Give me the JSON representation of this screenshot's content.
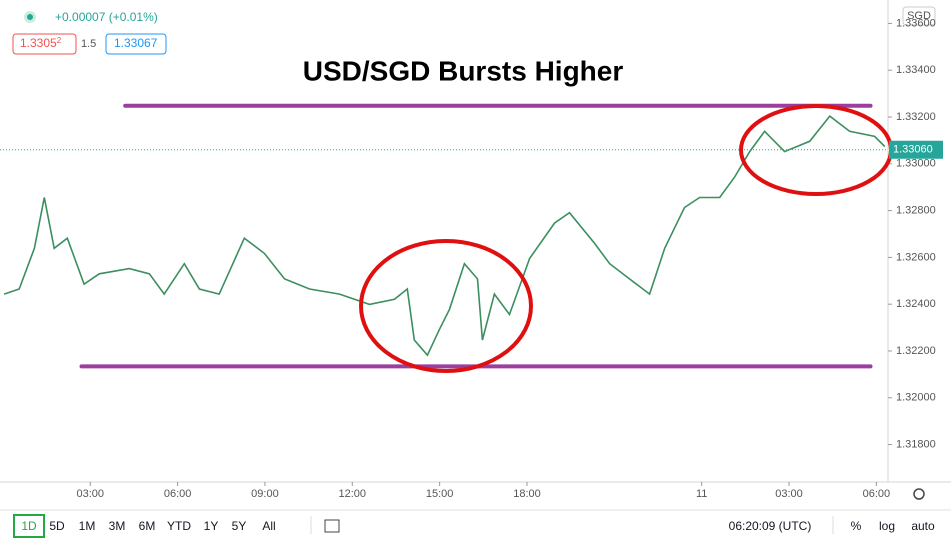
{
  "header": {
    "change": "+0.00007 (+0.01%)",
    "bid": {
      "main": "1.3305",
      "pip": "2"
    },
    "spread": "1.5",
    "ask": "1.33067",
    "currency": "SGD"
  },
  "chart_data": {
    "type": "line",
    "title": "USD/SGD Bursts Higher",
    "series": [
      {
        "color": "#3b8f5e",
        "x": [
          0.04,
          0.56,
          1.08,
          1.42,
          1.76,
          2.21,
          2.79,
          3.31,
          4.34,
          5.03,
          5.54,
          6.23,
          6.75,
          7.43,
          8.29,
          8.98,
          9.67,
          10.53,
          11.56,
          12.59,
          13.45,
          13.89,
          14.13,
          14.58,
          14.99,
          15.34,
          15.85,
          16.3,
          16.47,
          16.88,
          17.4,
          18.09,
          18.95,
          19.46,
          20.32,
          20.84,
          21.52,
          22.21,
          22.73,
          23.41,
          23.93,
          24.62,
          25.13,
          25.65,
          26.16,
          26.85,
          27.71,
          28.4,
          29.08,
          29.94,
          30.29
        ],
        "values": [
          1.32443,
          1.32465,
          1.32639,
          1.32856,
          1.32639,
          1.32682,
          1.32486,
          1.3253,
          1.32552,
          1.3253,
          1.32443,
          1.32573,
          1.32465,
          1.32443,
          1.32682,
          1.32617,
          1.32508,
          1.32465,
          1.32443,
          1.32399,
          1.32421,
          1.32465,
          1.32247,
          1.32182,
          1.32291,
          1.32378,
          1.32573,
          1.32508,
          1.32247,
          1.32443,
          1.32356,
          1.32595,
          1.32747,
          1.32791,
          1.3266,
          1.32573,
          1.32508,
          1.32443,
          1.32639,
          1.32813,
          1.32856,
          1.32856,
          1.32943,
          1.33052,
          1.33139,
          1.33052,
          1.33096,
          1.33204,
          1.33139,
          1.33117,
          1.33074
        ]
      }
    ],
    "xlim": [
      -0.1,
      30.4
    ],
    "xticks": [
      {
        "value": 3,
        "label": "03:00"
      },
      {
        "value": 6,
        "label": "06:00"
      },
      {
        "value": 9,
        "label": "09:00"
      },
      {
        "value": 12,
        "label": "12:00"
      },
      {
        "value": 15,
        "label": "15:00"
      },
      {
        "value": 18,
        "label": "18:00"
      },
      {
        "value": 24,
        "label": "11"
      },
      {
        "value": 27,
        "label": "03:00"
      },
      {
        "value": 30,
        "label": "06:00"
      }
    ],
    "ylim": [
      1.3164,
      1.337
    ],
    "yticks": [
      {
        "value": 1.318,
        "label": "1.31800"
      },
      {
        "value": 1.32,
        "label": "1.32000"
      },
      {
        "value": 1.322,
        "label": "1.32200"
      },
      {
        "value": 1.324,
        "label": "1.32400"
      },
      {
        "value": 1.326,
        "label": "1.32600"
      },
      {
        "value": 1.328,
        "label": "1.32800"
      },
      {
        "value": 1.33,
        "label": "1.33000"
      },
      {
        "value": 1.332,
        "label": "1.33200"
      },
      {
        "value": 1.334,
        "label": "1.33400"
      },
      {
        "value": 1.336,
        "label": "1.33600"
      }
    ],
    "last_price": {
      "value": 1.3306,
      "label": "1.33060"
    },
    "levels": [
      {
        "value": 1.33248,
        "x": [
          4.2,
          29.8
        ]
      },
      {
        "value": 1.32134,
        "x": [
          2.7,
          29.8
        ]
      }
    ]
  },
  "toolbar": {
    "ranges": [
      "1D",
      "5D",
      "1M",
      "3M",
      "6M",
      "YTD",
      "1Y",
      "5Y",
      "All"
    ],
    "clock": "06:20:09 (UTC)",
    "percent": "%",
    "log": "log",
    "auto": "auto"
  }
}
